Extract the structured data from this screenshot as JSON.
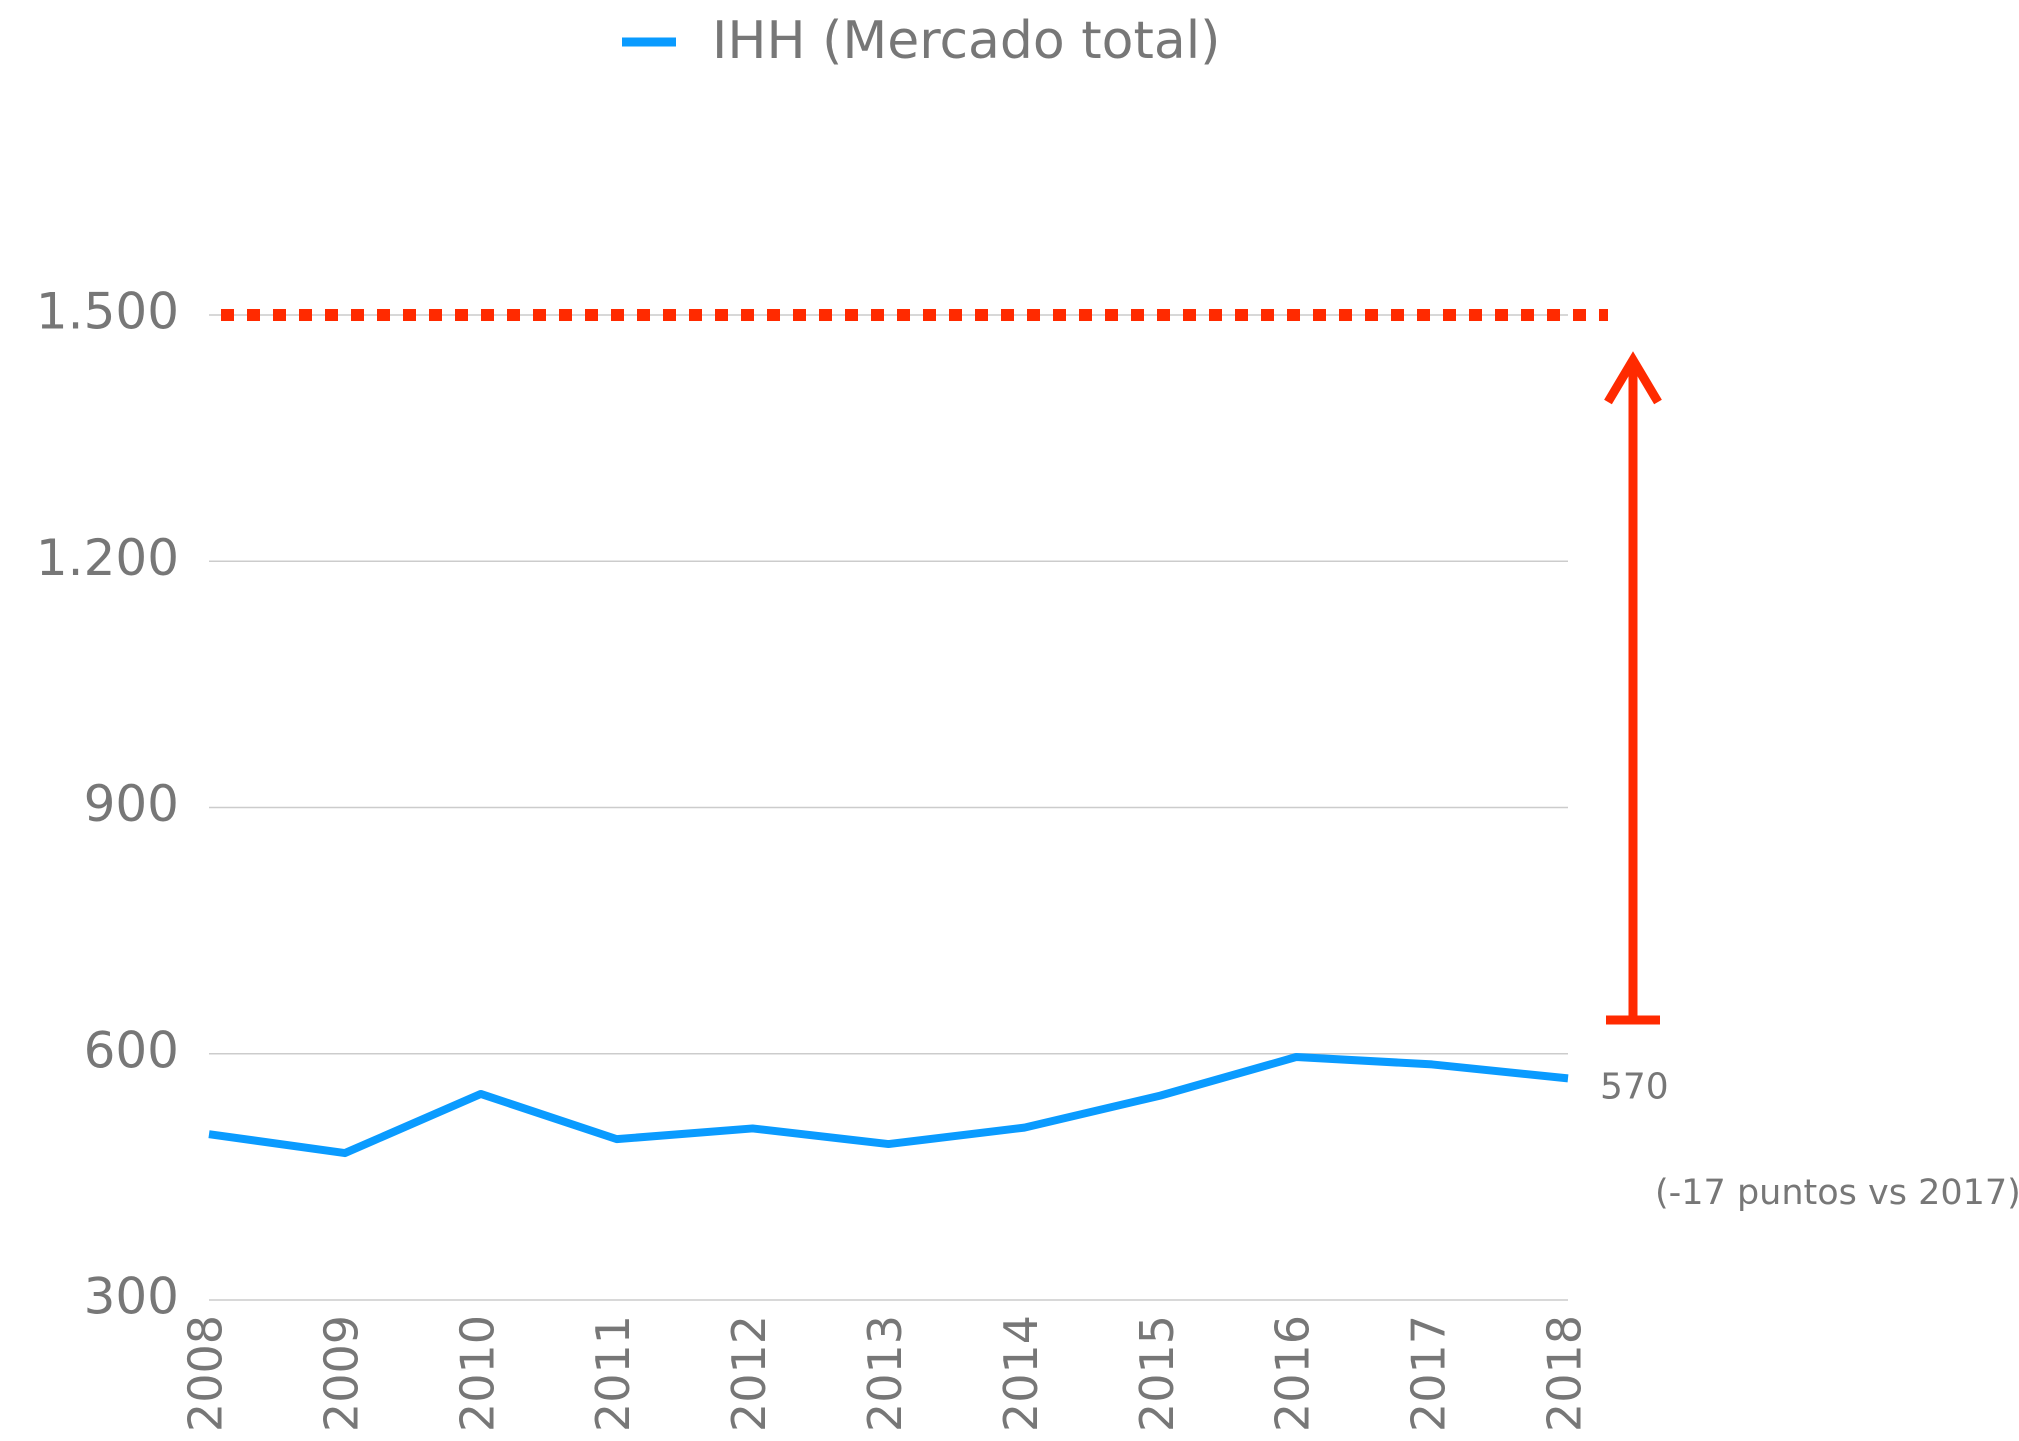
{
  "chart_data": {
    "type": "line",
    "categories": [
      "2008",
      "2009",
      "2010",
      "2011",
      "2012",
      "2013",
      "2014",
      "2015",
      "2016",
      "2017",
      "2018"
    ],
    "series": [
      {
        "name": "IHH (Mercado total)",
        "color": "#0a9bff",
        "values": [
          502,
          479,
          551,
          496,
          509,
          490,
          510,
          549,
          596,
          587,
          570
        ],
        "value_labels": [
          null,
          null,
          null,
          null,
          null,
          null,
          null,
          null,
          null,
          null,
          "570"
        ]
      }
    ],
    "ylim": [
      300,
      1500
    ],
    "yticks": [
      300,
      600,
      900,
      {
        "value": 1200,
        "label": "1.200"
      },
      {
        "value": 1500,
        "label": "1.500"
      }
    ],
    "grid": true,
    "reference_line": {
      "value": 1500,
      "color": "#ff2a00"
    },
    "annotation": "(-17 puntos vs 2017)",
    "legend": "top"
  }
}
